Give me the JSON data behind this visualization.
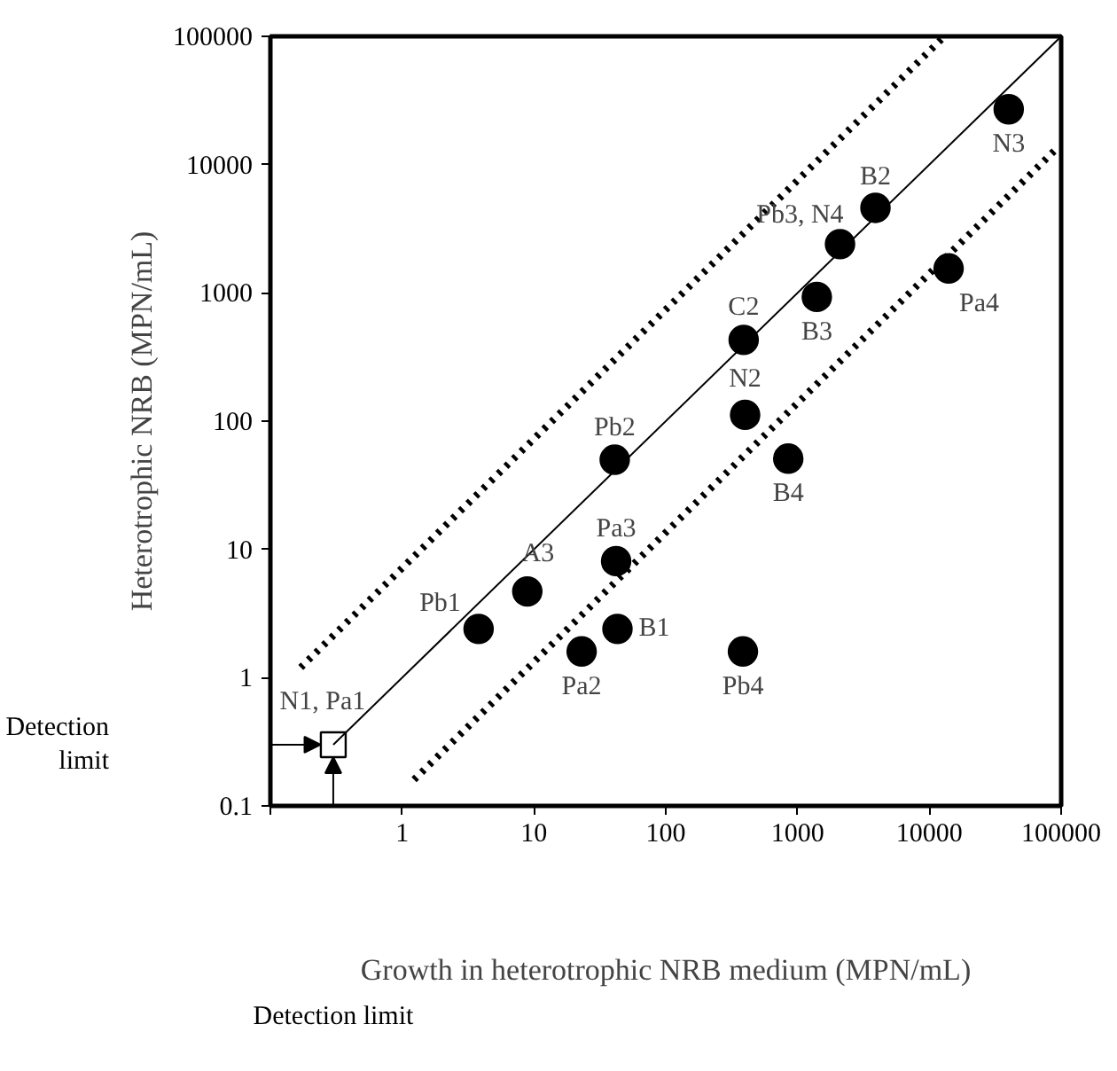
{
  "chart_data": {
    "type": "scatter",
    "xlabel": "Growth in heterotrophic NRB medium (MPN/mL)",
    "ylabel": "Heterotrophic NRB (MPN/mL)",
    "xlim": [
      0.1,
      100000
    ],
    "ylim": [
      0.1,
      100000
    ],
    "xticks": [
      {
        "value": 0.1,
        "label": null
      },
      1,
      10,
      100,
      1000,
      10000,
      100000
    ],
    "yticks": [
      0.1,
      1,
      10,
      100,
      1000,
      10000,
      100000
    ],
    "grid": false,
    "log": "xy",
    "series": [
      {
        "type": "scatter",
        "marker": "circle",
        "color": "#000000",
        "x": [
          3.8,
          8.9,
          23,
          43,
          42,
          41,
          385,
          400,
          850,
          390,
          1400,
          2100,
          3900,
          14000,
          40000
        ],
        "values": [
          2.4,
          4.7,
          1.6,
          2.4,
          8.1,
          50,
          1.6,
          112,
          51,
          430,
          930,
          2400,
          4600,
          1550,
          27000
        ]
      },
      {
        "type": "scatter",
        "marker": "square",
        "color": "#ffffff",
        "x": [
          0.3
        ],
        "values": [
          0.3
        ]
      },
      {
        "type": "line",
        "line_style": "solid",
        "color": "#000000",
        "x": [
          0.3,
          100000
        ],
        "values": [
          0.3,
          100000
        ]
      },
      {
        "type": "line",
        "line_style": "dotted",
        "color": "#000000",
        "x": [
          0.17,
          13000
        ],
        "values": [
          1.2,
          100000
        ]
      },
      {
        "type": "line",
        "line_style": "dotted",
        "color": "#000000",
        "x": [
          1.23,
          90000
        ],
        "values": [
          0.16,
          13000
        ]
      }
    ],
    "annotations": [
      {
        "text": "N1, Pa1",
        "x": 0.3,
        "y": 0.3
      },
      {
        "text": "Pb1",
        "x": 3.8,
        "y": 2.4
      },
      {
        "text": "A3",
        "x": 8.9,
        "y": 4.7
      },
      {
        "text": "Pa2",
        "x": 23,
        "y": 1.6
      },
      {
        "text": "B1",
        "x": 43,
        "y": 2.4
      },
      {
        "text": "Pa3",
        "x": 42,
        "y": 8.1
      },
      {
        "text": "Pb2",
        "x": 41,
        "y": 50
      },
      {
        "text": "Pb4",
        "x": 385,
        "y": 1.6
      },
      {
        "text": "N2",
        "x": 400,
        "y": 112
      },
      {
        "text": "B4",
        "x": 850,
        "y": 51
      },
      {
        "text": "C2",
        "x": 390,
        "y": 430
      },
      {
        "text": "B3",
        "x": 1400,
        "y": 930
      },
      {
        "text": "Pb3, N4",
        "x": 2100,
        "y": 2400
      },
      {
        "text": "B2",
        "x": 3900,
        "y": 4600
      },
      {
        "text": "Pa4",
        "x": 14000,
        "y": 1550
      },
      {
        "text": "N3",
        "x": 40000,
        "y": 27000
      },
      "Detection\nlimit",
      "Detection limit"
    ]
  }
}
